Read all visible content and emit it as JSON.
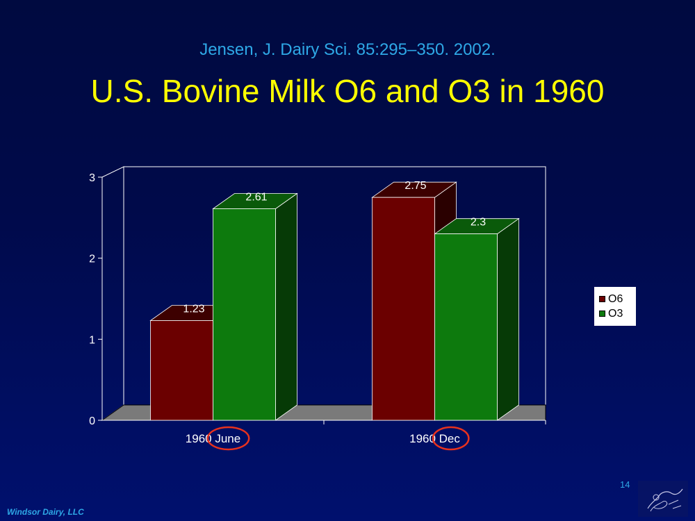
{
  "slide": {
    "citation": "Jensen, J. Dairy Sci. 85:295–350. 2002.",
    "title": "U.S. Bovine Milk O6 and O3 in 1960",
    "page_number": "14",
    "footer": "Windsor Dairy, LLC"
  },
  "colors": {
    "o6_front": "#6b0000",
    "o6_top": "#3d0000",
    "o6_side": "#2a0000",
    "o3_front": "#0d7a0d",
    "o3_top": "#0a5a0a",
    "o3_side": "#063a06",
    "floor": "#7a7a7a",
    "highlight_circle": "#e8321e"
  },
  "chart_data": {
    "type": "bar",
    "categories": [
      "1960 June",
      "1960 Dec"
    ],
    "series": [
      {
        "name": "O6",
        "values": [
          1.23,
          2.75
        ],
        "labels": [
          "1.23",
          "2.75"
        ]
      },
      {
        "name": "O3",
        "values": [
          2.61,
          2.3
        ],
        "labels": [
          "2.61",
          "2.3"
        ]
      }
    ],
    "yticks": [
      "0",
      "1",
      "2",
      "3"
    ],
    "ylim": [
      0,
      3
    ],
    "legend": "right",
    "three_d": true,
    "highlighted_words": [
      "June",
      "Dec"
    ]
  }
}
